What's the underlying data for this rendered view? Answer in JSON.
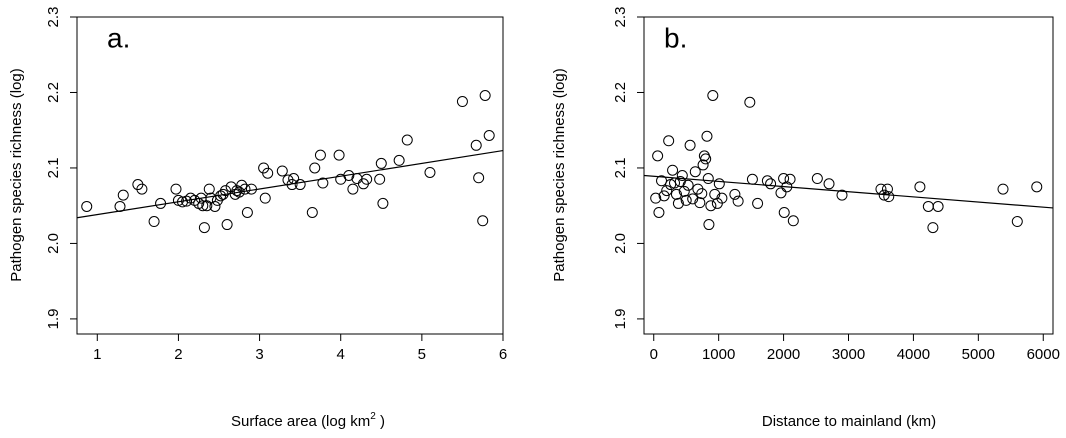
{
  "chart_data": [
    {
      "type": "scatter",
      "panel_label": "a.",
      "xlabel": "Surface area (log km",
      "xlabel_superscript": "2",
      "xlabel_suffix": " )",
      "ylabel": "Pathogen species richness (log)",
      "xlim": [
        0.75,
        6.0
      ],
      "ylim": [
        1.88,
        2.3
      ],
      "xticks": [
        1,
        2,
        3,
        4,
        5,
        6
      ],
      "yticks": [
        1.9,
        2.0,
        2.1,
        2.2,
        2.3
      ],
      "trendline": [
        [
          0.75,
          2.034
        ],
        [
          6.0,
          2.123
        ]
      ],
      "points": [
        [
          0.87,
          2.049
        ],
        [
          1.28,
          2.049
        ],
        [
          1.32,
          2.064
        ],
        [
          1.5,
          2.078
        ],
        [
          1.55,
          2.072
        ],
        [
          1.7,
          2.029
        ],
        [
          1.78,
          2.053
        ],
        [
          1.97,
          2.072
        ],
        [
          2.0,
          2.057
        ],
        [
          2.05,
          2.055
        ],
        [
          2.1,
          2.056
        ],
        [
          2.15,
          2.06
        ],
        [
          2.2,
          2.057
        ],
        [
          2.25,
          2.053
        ],
        [
          2.28,
          2.06
        ],
        [
          2.3,
          2.05
        ],
        [
          2.32,
          2.021
        ],
        [
          2.35,
          2.05
        ],
        [
          2.38,
          2.072
        ],
        [
          2.4,
          2.06
        ],
        [
          2.45,
          2.049
        ],
        [
          2.48,
          2.057
        ],
        [
          2.52,
          2.063
        ],
        [
          2.55,
          2.065
        ],
        [
          2.58,
          2.07
        ],
        [
          2.6,
          2.025
        ],
        [
          2.65,
          2.075
        ],
        [
          2.7,
          2.065
        ],
        [
          2.72,
          2.07
        ],
        [
          2.75,
          2.068
        ],
        [
          2.78,
          2.077
        ],
        [
          2.82,
          2.072
        ],
        [
          2.85,
          2.041
        ],
        [
          2.9,
          2.072
        ],
        [
          3.05,
          2.1
        ],
        [
          3.07,
          2.06
        ],
        [
          3.1,
          2.093
        ],
        [
          3.28,
          2.096
        ],
        [
          3.35,
          2.084
        ],
        [
          3.4,
          2.078
        ],
        [
          3.42,
          2.086
        ],
        [
          3.5,
          2.078
        ],
        [
          3.65,
          2.041
        ],
        [
          3.68,
          2.1
        ],
        [
          3.75,
          2.117
        ],
        [
          3.78,
          2.08
        ],
        [
          3.98,
          2.117
        ],
        [
          4.0,
          2.085
        ],
        [
          4.1,
          2.09
        ],
        [
          4.15,
          2.072
        ],
        [
          4.2,
          2.086
        ],
        [
          4.28,
          2.079
        ],
        [
          4.32,
          2.085
        ],
        [
          4.48,
          2.085
        ],
        [
          4.5,
          2.106
        ],
        [
          4.52,
          2.053
        ],
        [
          4.72,
          2.11
        ],
        [
          4.82,
          2.137
        ],
        [
          5.1,
          2.094
        ],
        [
          5.5,
          2.188
        ],
        [
          5.67,
          2.13
        ],
        [
          5.7,
          2.087
        ],
        [
          5.75,
          2.03
        ],
        [
          5.78,
          2.196
        ],
        [
          5.83,
          2.143
        ]
      ]
    },
    {
      "type": "scatter",
      "panel_label": "b.",
      "xlabel": "Distance to mainland (km)",
      "ylabel": "Pathogen species richness (log)",
      "xlim": [
        -150,
        6150
      ],
      "ylim": [
        1.88,
        2.3
      ],
      "xticks": [
        0,
        1000,
        2000,
        3000,
        4000,
        5000,
        6000
      ],
      "yticks": [
        1.9,
        2.0,
        2.1,
        2.2,
        2.3
      ],
      "trendline": [
        [
          -150,
          2.09
        ],
        [
          6150,
          2.047
        ]
      ],
      "points": [
        [
          30,
          2.06
        ],
        [
          60,
          2.116
        ],
        [
          80,
          2.041
        ],
        [
          120,
          2.083
        ],
        [
          160,
          2.063
        ],
        [
          200,
          2.07
        ],
        [
          230,
          2.136
        ],
        [
          260,
          2.078
        ],
        [
          290,
          2.097
        ],
        [
          320,
          2.08
        ],
        [
          350,
          2.065
        ],
        [
          380,
          2.053
        ],
        [
          410,
          2.082
        ],
        [
          440,
          2.09
        ],
        [
          470,
          2.069
        ],
        [
          500,
          2.057
        ],
        [
          530,
          2.077
        ],
        [
          560,
          2.13
        ],
        [
          600,
          2.059
        ],
        [
          640,
          2.095
        ],
        [
          680,
          2.072
        ],
        [
          710,
          2.054
        ],
        [
          740,
          2.066
        ],
        [
          760,
          2.104
        ],
        [
          780,
          2.116
        ],
        [
          800,
          2.112
        ],
        [
          820,
          2.142
        ],
        [
          840,
          2.086
        ],
        [
          850,
          2.025
        ],
        [
          880,
          2.05
        ],
        [
          910,
          2.196
        ],
        [
          940,
          2.065
        ],
        [
          980,
          2.053
        ],
        [
          1010,
          2.079
        ],
        [
          1050,
          2.06
        ],
        [
          1250,
          2.065
        ],
        [
          1300,
          2.056
        ],
        [
          1480,
          2.187
        ],
        [
          1520,
          2.085
        ],
        [
          1600,
          2.053
        ],
        [
          1750,
          2.083
        ],
        [
          1800,
          2.079
        ],
        [
          1960,
          2.067
        ],
        [
          2000,
          2.086
        ],
        [
          2010,
          2.041
        ],
        [
          2050,
          2.075
        ],
        [
          2100,
          2.085
        ],
        [
          2150,
          2.03
        ],
        [
          2520,
          2.086
        ],
        [
          2700,
          2.079
        ],
        [
          2900,
          2.064
        ],
        [
          3500,
          2.072
        ],
        [
          3550,
          2.064
        ],
        [
          3600,
          2.072
        ],
        [
          3620,
          2.062
        ],
        [
          4100,
          2.075
        ],
        [
          4230,
          2.049
        ],
        [
          4300,
          2.021
        ],
        [
          4380,
          2.049
        ],
        [
          5380,
          2.072
        ],
        [
          5600,
          2.029
        ],
        [
          5900,
          2.075
        ]
      ]
    }
  ]
}
